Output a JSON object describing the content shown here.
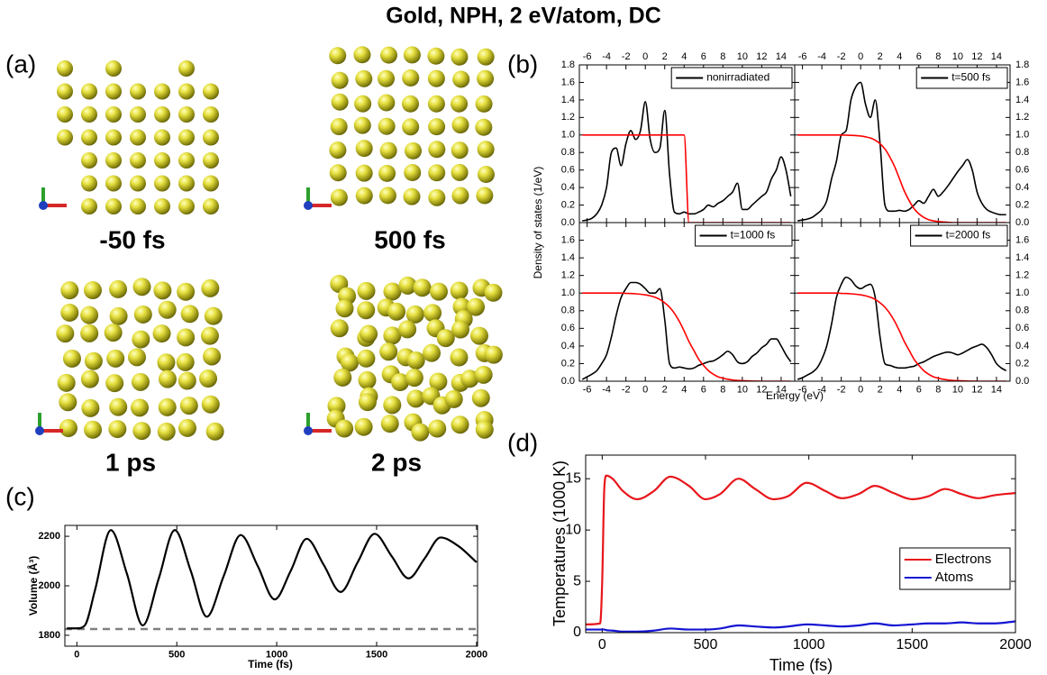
{
  "title": "Gold, NPH, 2 eV/atom, DC",
  "panel_labels": [
    "(a)",
    "(b)",
    "(c)",
    "(d)"
  ],
  "snapshots": [
    {
      "label": "-50 fs"
    },
    {
      "label": "500 fs"
    },
    {
      "label": "1 ps"
    },
    {
      "label": "2 ps"
    }
  ],
  "chart_data": [
    {
      "type": "line",
      "ylabel": "Density of states (1/eV)",
      "x": [
        -6.5,
        -6,
        -5.5,
        -5,
        -4.5,
        -4,
        -3.5,
        -3,
        -2.5,
        -2,
        -1.5,
        -1,
        -0.5,
        0,
        0.5,
        1,
        1.5,
        2,
        2.5,
        3,
        3.5,
        4,
        4.5,
        5,
        5.5,
        6,
        6.5,
        7,
        7.5,
        8,
        8.5,
        9,
        9.5,
        10,
        10.5,
        11,
        11.5,
        12,
        12.5,
        13,
        13.5,
        14,
        14.5,
        15
      ],
      "series": [
        {
          "name": "nonirradiated",
          "color": "#000000",
          "values": [
            0.02,
            0.03,
            0.05,
            0.1,
            0.2,
            0.4,
            0.8,
            0.85,
            0.65,
            0.9,
            1.05,
            0.95,
            1.05,
            1.38,
            0.95,
            0.8,
            0.85,
            1.28,
            0.55,
            0.12,
            0.1,
            0.12,
            0.1,
            0.1,
            0.12,
            0.15,
            0.2,
            0.18,
            0.22,
            0.25,
            0.3,
            0.35,
            0.45,
            0.15,
            0.15,
            0.2,
            0.25,
            0.3,
            0.35,
            0.5,
            0.6,
            0.75,
            0.6,
            0.3
          ]
        },
        {
          "color": "#ff0000",
          "values": [
            1,
            1,
            1,
            1,
            1,
            1,
            1,
            1,
            1,
            1,
            1,
            1,
            1,
            1,
            1,
            1,
            1,
            1,
            1,
            1,
            1,
            1,
            0,
            0,
            0,
            0,
            0,
            0,
            0,
            0,
            0,
            0,
            0,
            0,
            0,
            0,
            0,
            0,
            0,
            0,
            0,
            0,
            0,
            0
          ]
        }
      ],
      "xlim": [
        -6.8,
        15.4
      ],
      "ylim": [
        0,
        1.8
      ],
      "xticks": [
        -6,
        -4,
        -2,
        0,
        2,
        4,
        6,
        8,
        10,
        12,
        14
      ],
      "yticks": [
        {
          "value": 0,
          "label": "0.0"
        },
        0.2,
        0.4,
        0.6,
        0.8,
        {
          "value": 1,
          "label": "1.0"
        },
        1.2,
        1.4,
        1.6,
        1.8
      ],
      "legend": "upper right"
    },
    {
      "type": "line",
      "x": [
        -6.5,
        -6,
        -5.5,
        -5,
        -4.5,
        -4,
        -3.5,
        -3,
        -2.5,
        -2,
        -1.5,
        -1,
        -0.5,
        0,
        0.5,
        1,
        1.5,
        2,
        2.5,
        3,
        3.5,
        4,
        4.5,
        5,
        5.5,
        6,
        6.5,
        7,
        7.5,
        8,
        8.5,
        9,
        9.5,
        10,
        10.5,
        11,
        11.5,
        12,
        12.5,
        13,
        13.5,
        14,
        14.5,
        15
      ],
      "series": [
        {
          "name": "t=500 fs",
          "color": "#000000",
          "values": [
            0.02,
            0.03,
            0.04,
            0.06,
            0.1,
            0.15,
            0.25,
            0.5,
            0.7,
            1.0,
            1.05,
            1.4,
            1.55,
            1.6,
            1.35,
            1.2,
            1.4,
            0.9,
            0.2,
            0.13,
            0.13,
            0.14,
            0.13,
            0.15,
            0.2,
            0.25,
            0.22,
            0.3,
            0.38,
            0.3,
            0.35,
            0.42,
            0.5,
            0.58,
            0.65,
            0.72,
            0.6,
            0.35,
            0.22,
            0.15,
            0.12,
            0.1,
            0.09,
            0.09
          ]
        },
        {
          "color": "#ff0000",
          "values": [
            1,
            1,
            1,
            1,
            1,
            1,
            1,
            1,
            1,
            1,
            0.998,
            0.996,
            0.993,
            0.988,
            0.979,
            0.965,
            0.94,
            0.9,
            0.84,
            0.75,
            0.64,
            0.5,
            0.36,
            0.25,
            0.16,
            0.1,
            0.06,
            0.034,
            0.02,
            0.012,
            0.007,
            0.004,
            0,
            0,
            0,
            0,
            0,
            0,
            0,
            0,
            0,
            0,
            0,
            0
          ]
        }
      ],
      "xlim": [
        -6.8,
        15.4
      ],
      "ylim": [
        0,
        1.8
      ],
      "xticks": [
        -6,
        -4,
        -2,
        0,
        2,
        4,
        6,
        8,
        10,
        12,
        14
      ],
      "yticks": [
        {
          "value": 0,
          "label": "0.0"
        },
        0.2,
        0.4,
        0.6,
        0.8,
        {
          "value": 1,
          "label": "1.0"
        },
        1.2,
        1.4,
        1.6,
        1.8
      ],
      "legend": "upper right"
    },
    {
      "type": "line",
      "xlabel": "Energy (eV)",
      "x": [
        -6.5,
        -6,
        -5.5,
        -5,
        -4.5,
        -4,
        -3.5,
        -3,
        -2.5,
        -2,
        -1.5,
        -1,
        -0.5,
        0,
        0.5,
        1,
        1.5,
        2,
        2.5,
        3,
        3.5,
        4,
        4.5,
        5,
        5.5,
        6,
        6.5,
        7,
        7.5,
        8,
        8.5,
        9,
        9.5,
        10,
        10.5,
        11,
        11.5,
        12,
        12.5,
        13,
        13.5,
        14,
        14.5,
        15
      ],
      "series": [
        {
          "name": "t=1000 fs",
          "color": "#000000",
          "values": [
            0.02,
            0.05,
            0.08,
            0.12,
            0.2,
            0.3,
            0.5,
            0.75,
            0.95,
            1.05,
            1.12,
            1.12,
            1.1,
            1.05,
            1.0,
            1.0,
            1.05,
            0.7,
            0.2,
            0.15,
            0.16,
            0.15,
            0.14,
            0.15,
            0.18,
            0.2,
            0.22,
            0.23,
            0.26,
            0.3,
            0.34,
            0.3,
            0.22,
            0.2,
            0.22,
            0.28,
            0.32,
            0.38,
            0.42,
            0.48,
            0.48,
            0.4,
            0.3,
            0.22
          ]
        },
        {
          "color": "#ff0000",
          "values": [
            1,
            1,
            1,
            1,
            1,
            1,
            1,
            1,
            1,
            0.997,
            0.995,
            0.992,
            0.987,
            0.98,
            0.969,
            0.952,
            0.928,
            0.89,
            0.84,
            0.77,
            0.68,
            0.57,
            0.45,
            0.35,
            0.25,
            0.18,
            0.12,
            0.08,
            0.05,
            0.034,
            0.022,
            0.014,
            0.009,
            0.006,
            0.004,
            0.002,
            0.001,
            0,
            0,
            0,
            0,
            0,
            0,
            0
          ]
        }
      ],
      "xlim": [
        -6.8,
        15.4
      ],
      "ylim": [
        0,
        1.8
      ],
      "xticks": [
        -6,
        -4,
        -2,
        0,
        2,
        4,
        6,
        8,
        10,
        12,
        14
      ],
      "yticks": [
        {
          "value": 0,
          "label": "0.0"
        },
        0.2,
        0.4,
        0.6,
        0.8,
        {
          "value": 1,
          "label": "1.0"
        },
        1.2,
        1.4,
        1.6
      ],
      "legend": "upper right"
    },
    {
      "type": "line",
      "x": [
        -6.5,
        -6,
        -5.5,
        -5,
        -4.5,
        -4,
        -3.5,
        -3,
        -2.5,
        -2,
        -1.5,
        -1,
        -0.5,
        0,
        0.5,
        1,
        1.5,
        2,
        2.5,
        3,
        3.5,
        4,
        4.5,
        5,
        5.5,
        6,
        6.5,
        7,
        7.5,
        8,
        8.5,
        9,
        9.5,
        10,
        10.5,
        11,
        11.5,
        12,
        12.5,
        13,
        13.5,
        14,
        14.5,
        15
      ],
      "series": [
        {
          "name": "t=2000 fs",
          "color": "#000000",
          "values": [
            0.02,
            0.04,
            0.07,
            0.1,
            0.15,
            0.25,
            0.4,
            0.65,
            0.95,
            1.1,
            1.18,
            1.15,
            1.08,
            1.05,
            1.08,
            1.1,
            0.95,
            0.5,
            0.2,
            0.18,
            0.16,
            0.15,
            0.15,
            0.16,
            0.17,
            0.2,
            0.22,
            0.25,
            0.28,
            0.3,
            0.32,
            0.33,
            0.32,
            0.3,
            0.32,
            0.35,
            0.38,
            0.4,
            0.42,
            0.38,
            0.3,
            0.2,
            0.15,
            0.12
          ]
        },
        {
          "color": "#ff0000",
          "values": [
            1,
            1,
            1,
            1,
            1,
            1,
            1,
            1,
            1,
            0.997,
            0.995,
            0.992,
            0.987,
            0.98,
            0.969,
            0.952,
            0.928,
            0.89,
            0.84,
            0.77,
            0.68,
            0.57,
            0.45,
            0.35,
            0.25,
            0.18,
            0.12,
            0.08,
            0.05,
            0.034,
            0.022,
            0.014,
            0.009,
            0.006,
            0.004,
            0.002,
            0.001,
            0,
            0,
            0,
            0,
            0,
            0,
            0
          ]
        }
      ],
      "xlim": [
        -6.8,
        15.4
      ],
      "ylim": [
        0,
        1.8
      ],
      "xticks": [
        -6,
        -4,
        -2,
        0,
        2,
        4,
        6,
        8,
        10,
        12,
        14
      ],
      "yticks": [
        {
          "value": 0,
          "label": "0.0"
        },
        0.2,
        0.4,
        0.6,
        0.8,
        {
          "value": 1,
          "label": "1.0"
        },
        1.2,
        1.4,
        1.6
      ],
      "legend": "upper right"
    },
    {
      "type": "line",
      "xlabel": "Time (fs)",
      "ylabel": "Volume (Å³)",
      "x": [
        -50,
        0,
        40,
        90,
        170,
        250,
        330,
        410,
        490,
        570,
        650,
        735,
        820,
        905,
        990,
        1070,
        1150,
        1235,
        1320,
        1405,
        1490,
        1575,
        1660,
        1740,
        1820,
        1910,
        2000
      ],
      "series": [
        {
          "color": "#000000",
          "values": [
            1828,
            1828,
            1840,
            1980,
            2225,
            2050,
            1840,
            2030,
            2225,
            2060,
            1875,
            2040,
            2205,
            2080,
            1945,
            2060,
            2190,
            2085,
            1975,
            2095,
            2210,
            2120,
            2030,
            2110,
            2195,
            2160,
            2095
          ]
        }
      ],
      "hline": 1825,
      "hline_color": "#808080",
      "xlim": [
        -60,
        2005
      ],
      "ylim": [
        1756,
        2244
      ],
      "xticks": [
        0,
        500,
        1000,
        1500,
        2000
      ],
      "yticks": [
        1800,
        2000,
        2200
      ]
    },
    {
      "type": "line",
      "xlabel": "Time (fs)",
      "ylabel": "Temperatures (1000 K)",
      "x": [
        -80,
        -10,
        0,
        10,
        20,
        50,
        100,
        170,
        250,
        330,
        420,
        500,
        570,
        660,
        740,
        830,
        900,
        990,
        1080,
        1160,
        1240,
        1320,
        1410,
        1500,
        1580,
        1660,
        1740,
        1820,
        1900,
        2000
      ],
      "series": [
        {
          "name": "Electrons",
          "color": "#e8161b",
          "values": [
            0.8,
            0.9,
            5,
            14,
            15.3,
            15,
            13.8,
            13,
            13.8,
            15.2,
            14.3,
            13,
            13.5,
            15,
            14,
            13,
            13.3,
            14.6,
            13.8,
            13.1,
            13.5,
            14.3,
            13.6,
            13,
            13.3,
            14,
            13.5,
            13.1,
            13.4,
            13.6
          ]
        },
        {
          "name": "Atoms",
          "color": "#1414d2",
          "values": [
            0.3,
            0.3,
            0.3,
            0.3,
            0.25,
            0.2,
            0.1,
            0.1,
            0.2,
            0.4,
            0.3,
            0.3,
            0.4,
            0.7,
            0.6,
            0.5,
            0.6,
            0.8,
            0.7,
            0.6,
            0.7,
            0.9,
            0.7,
            0.8,
            0.9,
            0.9,
            1.0,
            0.9,
            0.9,
            1.1
          ]
        }
      ],
      "xlim": [
        -80,
        2000
      ],
      "ylim": [
        0,
        17.3
      ],
      "xticks": [
        0,
        500,
        1000,
        1500,
        2000
      ],
      "yticks": [
        0,
        5,
        10,
        15
      ],
      "legend": "lower right"
    }
  ]
}
